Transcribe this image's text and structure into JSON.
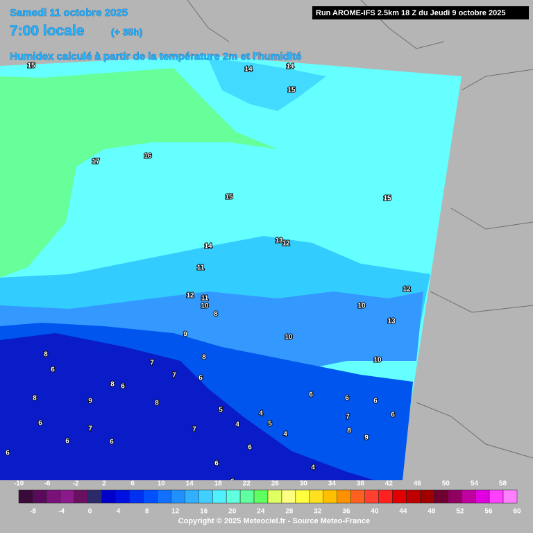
{
  "header": {
    "date": "Samedi 11 octobre 2025",
    "time": "7:00 locale",
    "offset": "(+ 35h)",
    "subtitle": "Humidex calculé à partir de la température 2m et l'humidité",
    "run": "Run AROME-IFS 2.5km 18 Z du Jeudi 9 octobre 2025"
  },
  "contour_labels": [
    "15",
    "14",
    "14",
    "15",
    "16",
    "17",
    "15",
    "15",
    "14",
    "13",
    "12",
    "11",
    "12",
    "11",
    "10",
    "8",
    "12",
    "10",
    "13",
    "10",
    "9",
    "8",
    "10",
    "8",
    "6",
    "7",
    "7",
    "6",
    "8",
    "6",
    "8",
    "9",
    "8",
    "5",
    "4",
    "5",
    "4",
    "7",
    "6",
    "6",
    "6",
    "6",
    "8",
    "9",
    "4",
    "6",
    "7",
    "6",
    "6",
    "7",
    "6",
    "6",
    "4",
    "6",
    "6"
  ],
  "colorbar": {
    "top_labels": [
      -10,
      -6,
      -2,
      2,
      6,
      10,
      14,
      18,
      22,
      26,
      30,
      34,
      38,
      42,
      46,
      50,
      54,
      58
    ],
    "bottom_labels": [
      -8,
      -4,
      0,
      4,
      8,
      12,
      16,
      20,
      24,
      28,
      32,
      36,
      40,
      44,
      48,
      52,
      56,
      60
    ]
  },
  "footer": "Copyright © 2025 Meteociel.fr - Source Meteo-France"
}
